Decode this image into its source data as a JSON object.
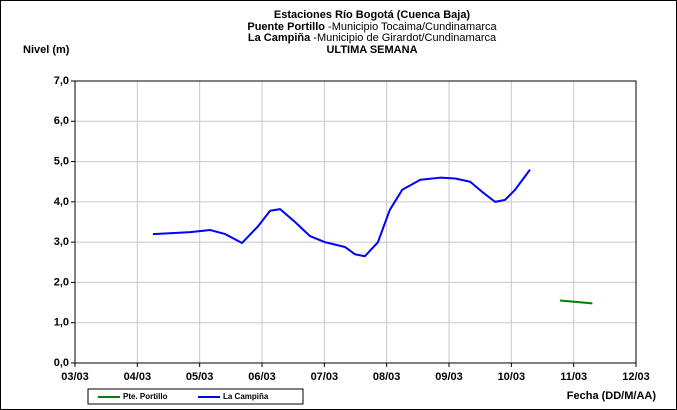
{
  "chart_data": {
    "type": "line",
    "title": "Estaciones Río Bogotá (Cuenca Baja)",
    "subtitles": [
      {
        "bold": "Puente Portillo",
        "rest": " -Municipio Tocaima/Cundinamarca"
      },
      {
        "bold": "La Campiña",
        "rest": " -Municipio de Girardot/Cundinamarca"
      }
    ],
    "period": "ULTIMA SEMANA",
    "y_label": "Nivel (m)",
    "x_label": "Fecha (DD/M/AA)",
    "xlim": [
      3,
      12
    ],
    "xticks": [
      {
        "value": 3,
        "label": "03/03"
      },
      {
        "value": 4,
        "label": "04/03"
      },
      {
        "value": 5,
        "label": "05/03"
      },
      {
        "value": 6,
        "label": "06/03"
      },
      {
        "value": 7,
        "label": "07/03"
      },
      {
        "value": 8,
        "label": "08/03"
      },
      {
        "value": 9,
        "label": "09/03"
      },
      {
        "value": 10,
        "label": "10/03"
      },
      {
        "value": 11,
        "label": "11/03"
      },
      {
        "value": 12,
        "label": "12/03"
      }
    ],
    "ylim": [
      0,
      7
    ],
    "yticks": [
      {
        "value": 0,
        "label": "0,0"
      },
      {
        "value": 1,
        "label": "1,0"
      },
      {
        "value": 2,
        "label": "2,0"
      },
      {
        "value": 3,
        "label": "3,0"
      },
      {
        "value": 4,
        "label": "4,0"
      },
      {
        "value": 5,
        "label": "5,0"
      },
      {
        "value": 6,
        "label": "6,0"
      },
      {
        "value": 7,
        "label": "7,0"
      }
    ],
    "grid": true,
    "legend": "bottom-left",
    "series": [
      {
        "name": "Pte. Portillo",
        "color": "#008000",
        "x": [
          10.78,
          11.3
        ],
        "values": [
          1.55,
          1.48
        ]
      },
      {
        "name": "La Campiña",
        "color": "#0000ff",
        "x": [
          4.25,
          4.52,
          4.85,
          5.17,
          5.41,
          5.68,
          5.94,
          6.13,
          6.29,
          6.53,
          6.77,
          7.01,
          7.33,
          7.49,
          7.65,
          7.86,
          8.05,
          8.25,
          8.54,
          8.86,
          9.1,
          9.34,
          9.53,
          9.74,
          9.9,
          10.06,
          10.3
        ],
        "values": [
          3.2,
          3.22,
          3.25,
          3.3,
          3.2,
          2.98,
          3.4,
          3.78,
          3.82,
          3.5,
          3.15,
          3.0,
          2.88,
          2.7,
          2.65,
          3.0,
          3.8,
          4.3,
          4.55,
          4.6,
          4.58,
          4.5,
          4.25,
          4.0,
          4.05,
          4.3,
          4.8
        ]
      }
    ]
  }
}
